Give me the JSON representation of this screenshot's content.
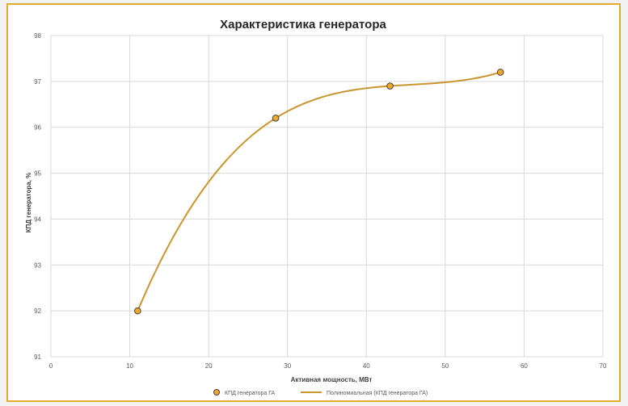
{
  "chart_data": {
    "type": "scatter",
    "title": "Характеристика генератора",
    "xlabel": "Активная мощность, МВт",
    "ylabel": "КПД генератора, %",
    "xlim": [
      0,
      70
    ],
    "ylim": [
      91,
      98
    ],
    "x_ticks": [
      0,
      10,
      20,
      30,
      40,
      50,
      60,
      70
    ],
    "y_ticks": [
      91,
      92,
      93,
      94,
      95,
      96,
      97,
      98
    ],
    "grid": true,
    "legend_position": "bottom",
    "series": [
      {
        "name": "КПД генератора ГА",
        "kind": "scatter",
        "x": [
          11,
          28.5,
          43,
          57
        ],
        "y": [
          92.0,
          96.2,
          96.9,
          97.2
        ]
      }
    ],
    "trendline": {
      "name": "Полиномиальная (КПД генератора ГА)",
      "kind": "polynomial"
    },
    "colors": {
      "marker_fill": "#f0a830",
      "marker_stroke": "#404040",
      "trend": "#c8962c",
      "grid": "#d9d9d9",
      "frame": "#e3a92a"
    }
  }
}
